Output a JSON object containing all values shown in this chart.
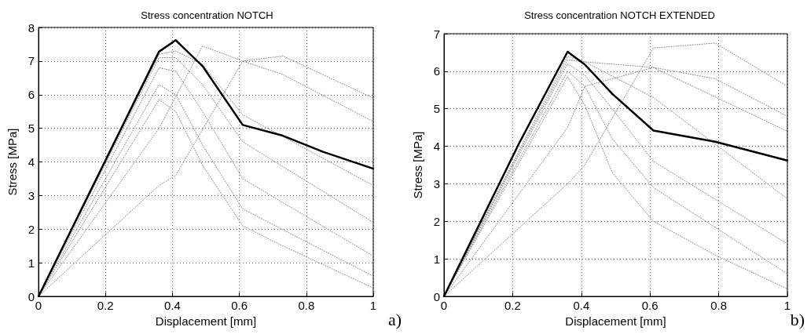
{
  "chart_data": [
    {
      "type": "line",
      "title": "Stress concentration NOTCH",
      "xlabel": "Displacement [mm]",
      "ylabel": "Stress [MPa]",
      "xlim": [
        0,
        1
      ],
      "ylim": [
        0,
        8
      ],
      "xticks": [
        0,
        0.2,
        0.4,
        0.6,
        0.8,
        1
      ],
      "yticks": [
        0,
        1,
        2,
        3,
        4,
        5,
        6,
        7,
        8
      ],
      "grid": true,
      "marker": "none",
      "annotations": [
        "a)"
      ],
      "series": [
        {
          "color": "#888888",
          "line_style": "dotted",
          "x": [
            0,
            0.36,
            0.41,
            0.49,
            0.61,
            0.73,
            1
          ],
          "values": [
            0,
            5.85,
            5.5,
            3.9,
            2.1,
            1.5,
            0.25
          ]
        },
        {
          "color": "#888888",
          "line_style": "dotted",
          "x": [
            0,
            0.36,
            0.41,
            0.49,
            0.61,
            1
          ],
          "values": [
            0,
            6.3,
            6.0,
            4.5,
            2.6,
            0.6
          ]
        },
        {
          "color": "#888888",
          "line_style": "dotted",
          "x": [
            0,
            0.36,
            0.41,
            0.49,
            0.61,
            1
          ],
          "values": [
            0,
            6.8,
            6.7,
            5.5,
            3.5,
            1.2
          ]
        },
        {
          "color": "#888888",
          "line_style": "dotted",
          "x": [
            0,
            0.36,
            0.41,
            0.49,
            0.61,
            1
          ],
          "values": [
            0,
            7.1,
            7.1,
            6.3,
            4.6,
            2.2
          ]
        },
        {
          "color": "#888888",
          "line_style": "dotted",
          "x": [
            0,
            0.36,
            0.41,
            0.49,
            0.61,
            1
          ],
          "values": [
            0,
            7.2,
            7.3,
            6.9,
            5.4,
            3.3
          ]
        },
        {
          "color": "#888888",
          "line_style": "dotted",
          "x": [
            0,
            0.36,
            0.49,
            0.61,
            0.73,
            1
          ],
          "values": [
            0,
            5.0,
            7.45,
            7.0,
            6.6,
            5.2
          ]
        },
        {
          "color": "#888888",
          "line_style": "dotted",
          "x": [
            0,
            0.36,
            0.41,
            0.61,
            0.73,
            1
          ],
          "values": [
            0,
            3.3,
            3.6,
            7.0,
            7.15,
            5.9
          ]
        },
        {
          "color": "#000000",
          "line_style": "solid",
          "x": [
            0,
            0.36,
            0.41,
            0.49,
            0.61,
            0.73,
            0.85,
            1
          ],
          "values": [
            0,
            7.28,
            7.62,
            6.85,
            5.1,
            4.78,
            4.3,
            3.8
          ]
        }
      ]
    },
    {
      "type": "line",
      "title": "Stress concentration NOTCH EXTENDED",
      "xlabel": "Displacement [mm]",
      "ylabel": "Stress [MPa]",
      "xlim": [
        0,
        1
      ],
      "ylim": [
        0,
        7
      ],
      "xticks": [
        0,
        0.2,
        0.4,
        0.6,
        0.8,
        1
      ],
      "yticks": [
        0,
        1,
        2,
        3,
        4,
        5,
        6,
        7
      ],
      "grid": true,
      "marker": "none",
      "annotations": [
        "b)"
      ],
      "series": [
        {
          "color": "#888888",
          "line_style": "dotted",
          "x": [
            0,
            0.36,
            0.41,
            0.49,
            0.61,
            0.79,
            1
          ],
          "values": [
            0,
            5.85,
            5.1,
            3.3,
            2.0,
            1.1,
            0.2
          ]
        },
        {
          "color": "#888888",
          "line_style": "dotted",
          "x": [
            0,
            0.36,
            0.41,
            0.49,
            0.61,
            1
          ],
          "values": [
            0,
            6.0,
            5.6,
            4.2,
            2.9,
            0.6
          ]
        },
        {
          "color": "#888888",
          "line_style": "dotted",
          "x": [
            0,
            0.36,
            0.41,
            0.49,
            0.61,
            1
          ],
          "values": [
            0,
            6.2,
            5.9,
            5.0,
            3.6,
            1.4
          ]
        },
        {
          "color": "#888888",
          "line_style": "dotted",
          "x": [
            0,
            0.36,
            0.41,
            0.61,
            1
          ],
          "values": [
            0,
            6.4,
            6.25,
            5.3,
            2.6
          ]
        },
        {
          "color": "#888888",
          "line_style": "dotted",
          "x": [
            0,
            0.36,
            0.41,
            0.61,
            1
          ],
          "values": [
            0,
            6.3,
            6.25,
            6.1,
            4.4
          ]
        },
        {
          "color": "#888888",
          "line_style": "dotted",
          "x": [
            0,
            0.36,
            0.41,
            0.61,
            0.79,
            1
          ],
          "values": [
            0,
            4.5,
            5.6,
            6.1,
            5.8,
            4.8
          ]
        },
        {
          "color": "#888888",
          "line_style": "dotted",
          "x": [
            0,
            0.36,
            0.41,
            0.61,
            0.79,
            1
          ],
          "values": [
            0,
            3.0,
            3.5,
            6.62,
            6.75,
            5.6
          ]
        },
        {
          "color": "#000000",
          "line_style": "solid",
          "x": [
            0,
            0.22,
            0.36,
            0.41,
            0.49,
            0.61,
            0.79,
            1
          ],
          "values": [
            0,
            4.1,
            6.52,
            6.18,
            5.4,
            4.42,
            4.12,
            3.62
          ]
        }
      ]
    }
  ]
}
